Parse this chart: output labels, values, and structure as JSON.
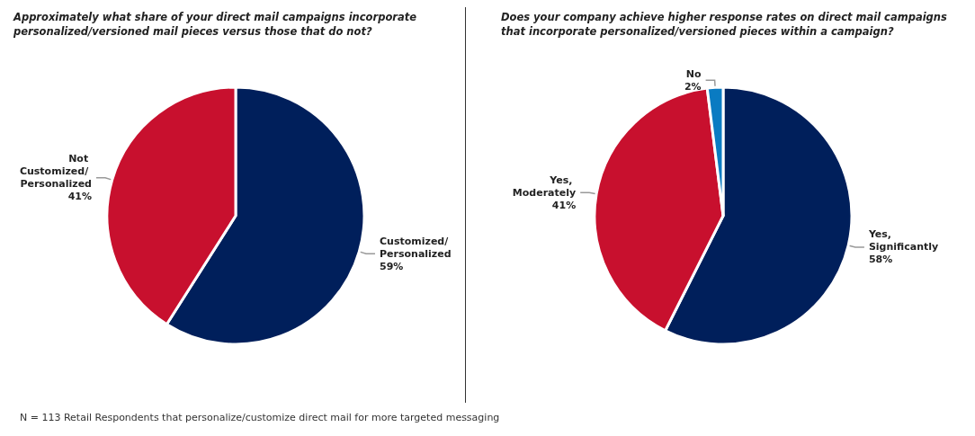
{
  "chart_data": [
    {
      "type": "pie",
      "title": "Approximately what share of your direct mail campaigns incorporate personalized/versioned mail pieces versus those that do not?",
      "categories": [
        "Customized/ Personalized",
        "Not Customized/ Personalized"
      ],
      "values": [
        59,
        41
      ],
      "value_labels": [
        "59%",
        "41%"
      ],
      "colors": [
        "#001f5b",
        "#c8102e"
      ],
      "legend": false,
      "annotations": [
        "N = 113 Retail Respondents that personalize/customize direct mail for more targeted messaging"
      ]
    },
    {
      "type": "pie",
      "title": "Does your company achieve higher response rates on direct mail campaigns that incorporate personalized/versioned pieces within a campaign?",
      "categories": [
        "Yes, Significantly",
        "Yes, Moderately",
        "No"
      ],
      "values": [
        58,
        41,
        2
      ],
      "value_labels": [
        "58%",
        "41%",
        "2%"
      ],
      "colors": [
        "#001f5b",
        "#c8102e",
        "#0a7bc2"
      ],
      "legend": false
    }
  ]
}
